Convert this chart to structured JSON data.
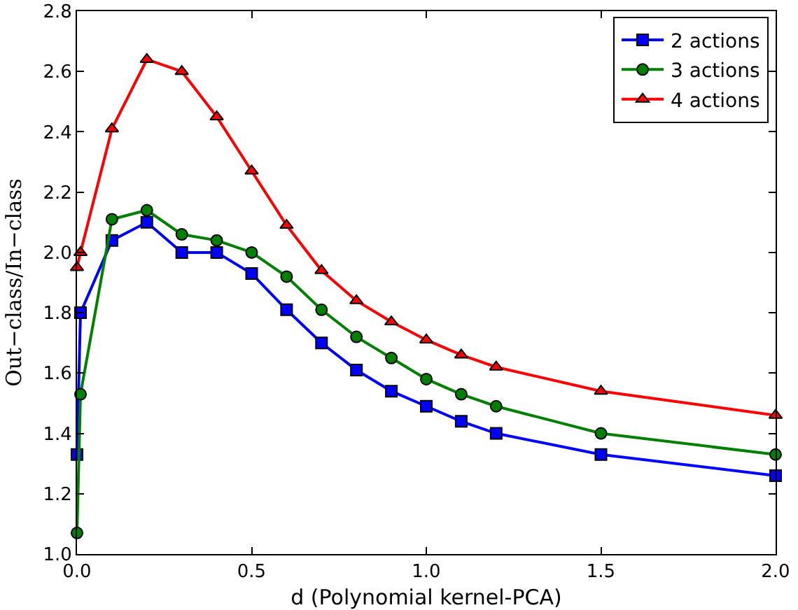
{
  "chart_data": {
    "type": "line",
    "xlabel": "d (Polynomial kernel-PCA)",
    "ylabel": "Out−class/In−class",
    "x": [
      0,
      0.01,
      0.1,
      0.2,
      0.3,
      0.4,
      0.5,
      0.6,
      0.7,
      0.8,
      0.9,
      1.0,
      1.1,
      1.2,
      1.5,
      2.0
    ],
    "series": [
      {
        "name": "2 actions",
        "color": "#0000ff",
        "marker": "square",
        "values": [
          1.33,
          1.8,
          2.04,
          2.1,
          2.0,
          2.0,
          1.93,
          1.81,
          1.7,
          1.61,
          1.54,
          1.49,
          1.44,
          1.4,
          1.33,
          1.26
        ]
      },
      {
        "name": "3 actions",
        "color": "#008000",
        "marker": "circle",
        "values": [
          1.07,
          1.53,
          2.11,
          2.14,
          2.06,
          2.04,
          2.0,
          1.92,
          1.81,
          1.72,
          1.65,
          1.58,
          1.53,
          1.49,
          1.4,
          1.33
        ]
      },
      {
        "name": "4 actions",
        "color": "#ff0000",
        "marker": "triangle",
        "values": [
          1.95,
          2.0,
          2.41,
          2.64,
          2.6,
          2.45,
          2.27,
          2.09,
          1.94,
          1.84,
          1.77,
          1.71,
          1.66,
          1.62,
          1.54,
          1.46
        ]
      }
    ],
    "xlim": [
      0,
      2
    ],
    "xticks": [
      {
        "value": 0,
        "label": "0.0"
      },
      0.5,
      {
        "value": 1,
        "label": "1.0"
      },
      1.5,
      {
        "value": 2,
        "label": "2.0"
      }
    ],
    "ylim": [
      1,
      2.8
    ],
    "yticks": [
      {
        "value": 1,
        "label": "1.0"
      },
      1.2,
      1.4,
      1.6,
      1.8,
      {
        "value": 2,
        "label": "2.0"
      },
      2.2,
      2.4,
      2.6,
      2.8
    ],
    "grid": false,
    "legend": "top right",
    "line_style": "solid"
  }
}
